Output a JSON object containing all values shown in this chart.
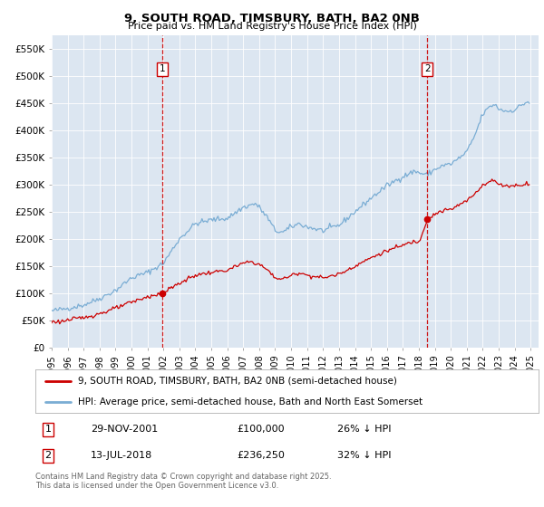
{
  "title": "9, SOUTH ROAD, TIMSBURY, BATH, BA2 0NB",
  "subtitle": "Price paid vs. HM Land Registry's House Price Index (HPI)",
  "ylim": [
    0,
    575000
  ],
  "yticks": [
    0,
    50000,
    100000,
    150000,
    200000,
    250000,
    300000,
    350000,
    400000,
    450000,
    500000,
    550000
  ],
  "ytick_labels": [
    "£0",
    "£50K",
    "£100K",
    "£150K",
    "£200K",
    "£250K",
    "£300K",
    "£350K",
    "£400K",
    "£450K",
    "£500K",
    "£550K"
  ],
  "xlim_start": 1995.0,
  "xlim_end": 2025.5,
  "plot_bg_color": "#dce6f1",
  "outer_bg_color": "#ffffff",
  "red_line_color": "#cc0000",
  "blue_line_color": "#7aadd4",
  "vline_color": "#cc0000",
  "transaction1_x": 2001.91,
  "transaction1_y": 100000,
  "transaction1_label": "1",
  "transaction1_date": "29-NOV-2001",
  "transaction1_price": "£100,000",
  "transaction1_hpi": "26% ↓ HPI",
  "transaction2_x": 2018.53,
  "transaction2_y": 236250,
  "transaction2_label": "2",
  "transaction2_date": "13-JUL-2018",
  "transaction2_price": "£236,250",
  "transaction2_hpi": "32% ↓ HPI",
  "legend_label_red": "9, SOUTH ROAD, TIMSBURY, BATH, BA2 0NB (semi-detached house)",
  "legend_label_blue": "HPI: Average price, semi-detached house, Bath and North East Somerset",
  "footnote": "Contains HM Land Registry data © Crown copyright and database right 2025.\nThis data is licensed under the Open Government Licence v3.0."
}
